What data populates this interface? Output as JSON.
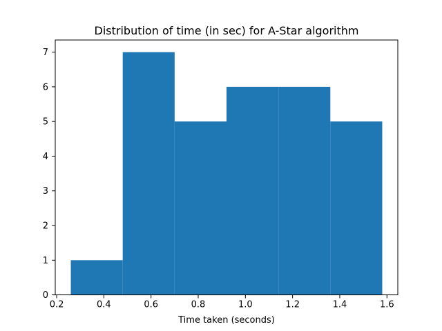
{
  "chart_data": {
    "type": "bar",
    "title": "Distribution of time (in sec) for A-Star algorithm",
    "xlabel": "Time taken (seconds)",
    "ylabel": "",
    "bins": [
      {
        "x0": 0.26,
        "x1": 0.48,
        "count": 1
      },
      {
        "x0": 0.48,
        "x1": 0.7,
        "count": 7
      },
      {
        "x0": 0.7,
        "x1": 0.92,
        "count": 5
      },
      {
        "x0": 0.92,
        "x1": 1.14,
        "count": 6
      },
      {
        "x0": 1.14,
        "x1": 1.36,
        "count": 6
      },
      {
        "x0": 1.36,
        "x1": 1.58,
        "count": 5
      }
    ],
    "xlim": [
      0.194,
      1.646
    ],
    "ylim": [
      0,
      7.35
    ],
    "xticks": [
      "0.2",
      "0.4",
      "0.6",
      "0.8",
      "1.0",
      "1.2",
      "1.4",
      "1.6"
    ],
    "yticks": [
      "0",
      "1",
      "2",
      "3",
      "4",
      "5",
      "6",
      "7"
    ],
    "bar_color": "#1f77b4",
    "grid": false,
    "legend": "none"
  }
}
